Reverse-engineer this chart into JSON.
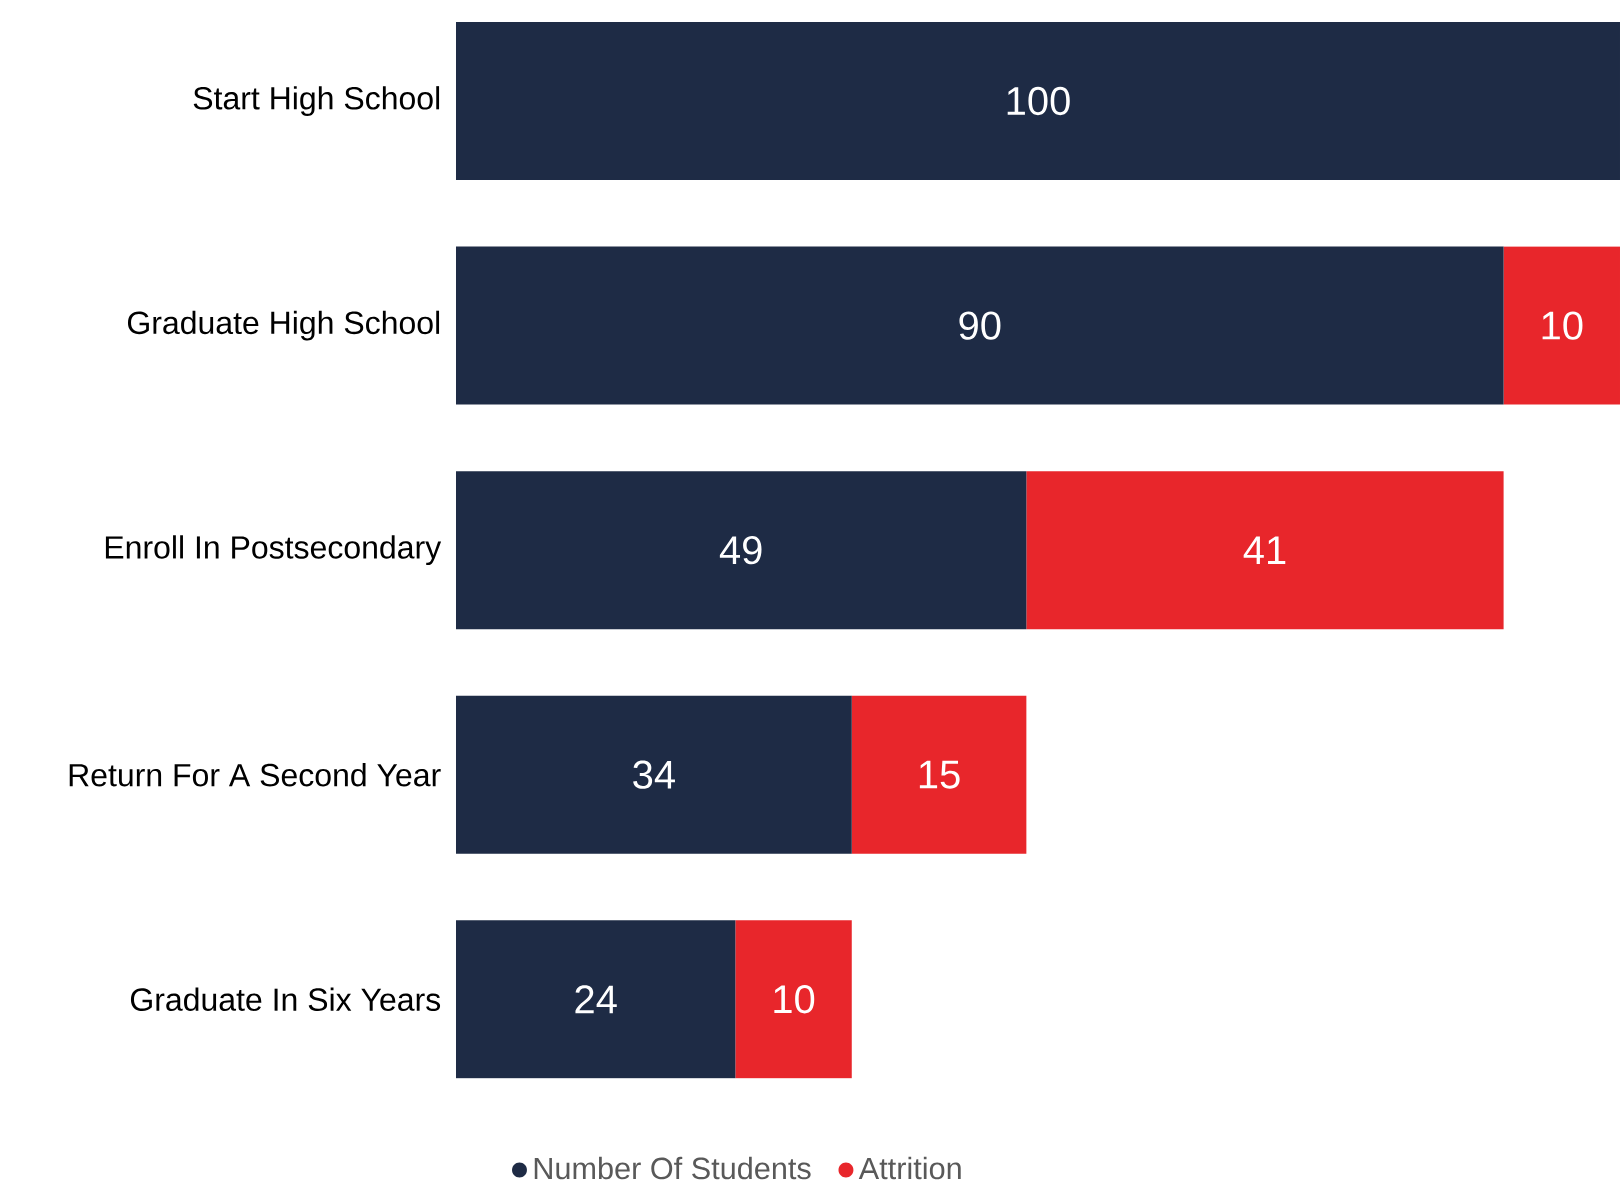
{
  "chart_data": {
    "type": "bar",
    "orientation": "horizontal",
    "stacked": true,
    "data_labels": true,
    "legend": "bottom",
    "grid": false,
    "categories": [
      "Start High School",
      "Graduate High School",
      "Enroll In Postsecondary",
      "Return For A Second Year",
      "Graduate In Six Years"
    ],
    "series": [
      {
        "name": "Number Of Students",
        "color": "#1e2b45",
        "values": [
          100,
          90,
          49,
          34,
          24
        ]
      },
      {
        "name": "Attrition",
        "color": "#e8262b",
        "values": [
          null,
          10,
          41,
          15,
          10
        ]
      }
    ]
  }
}
